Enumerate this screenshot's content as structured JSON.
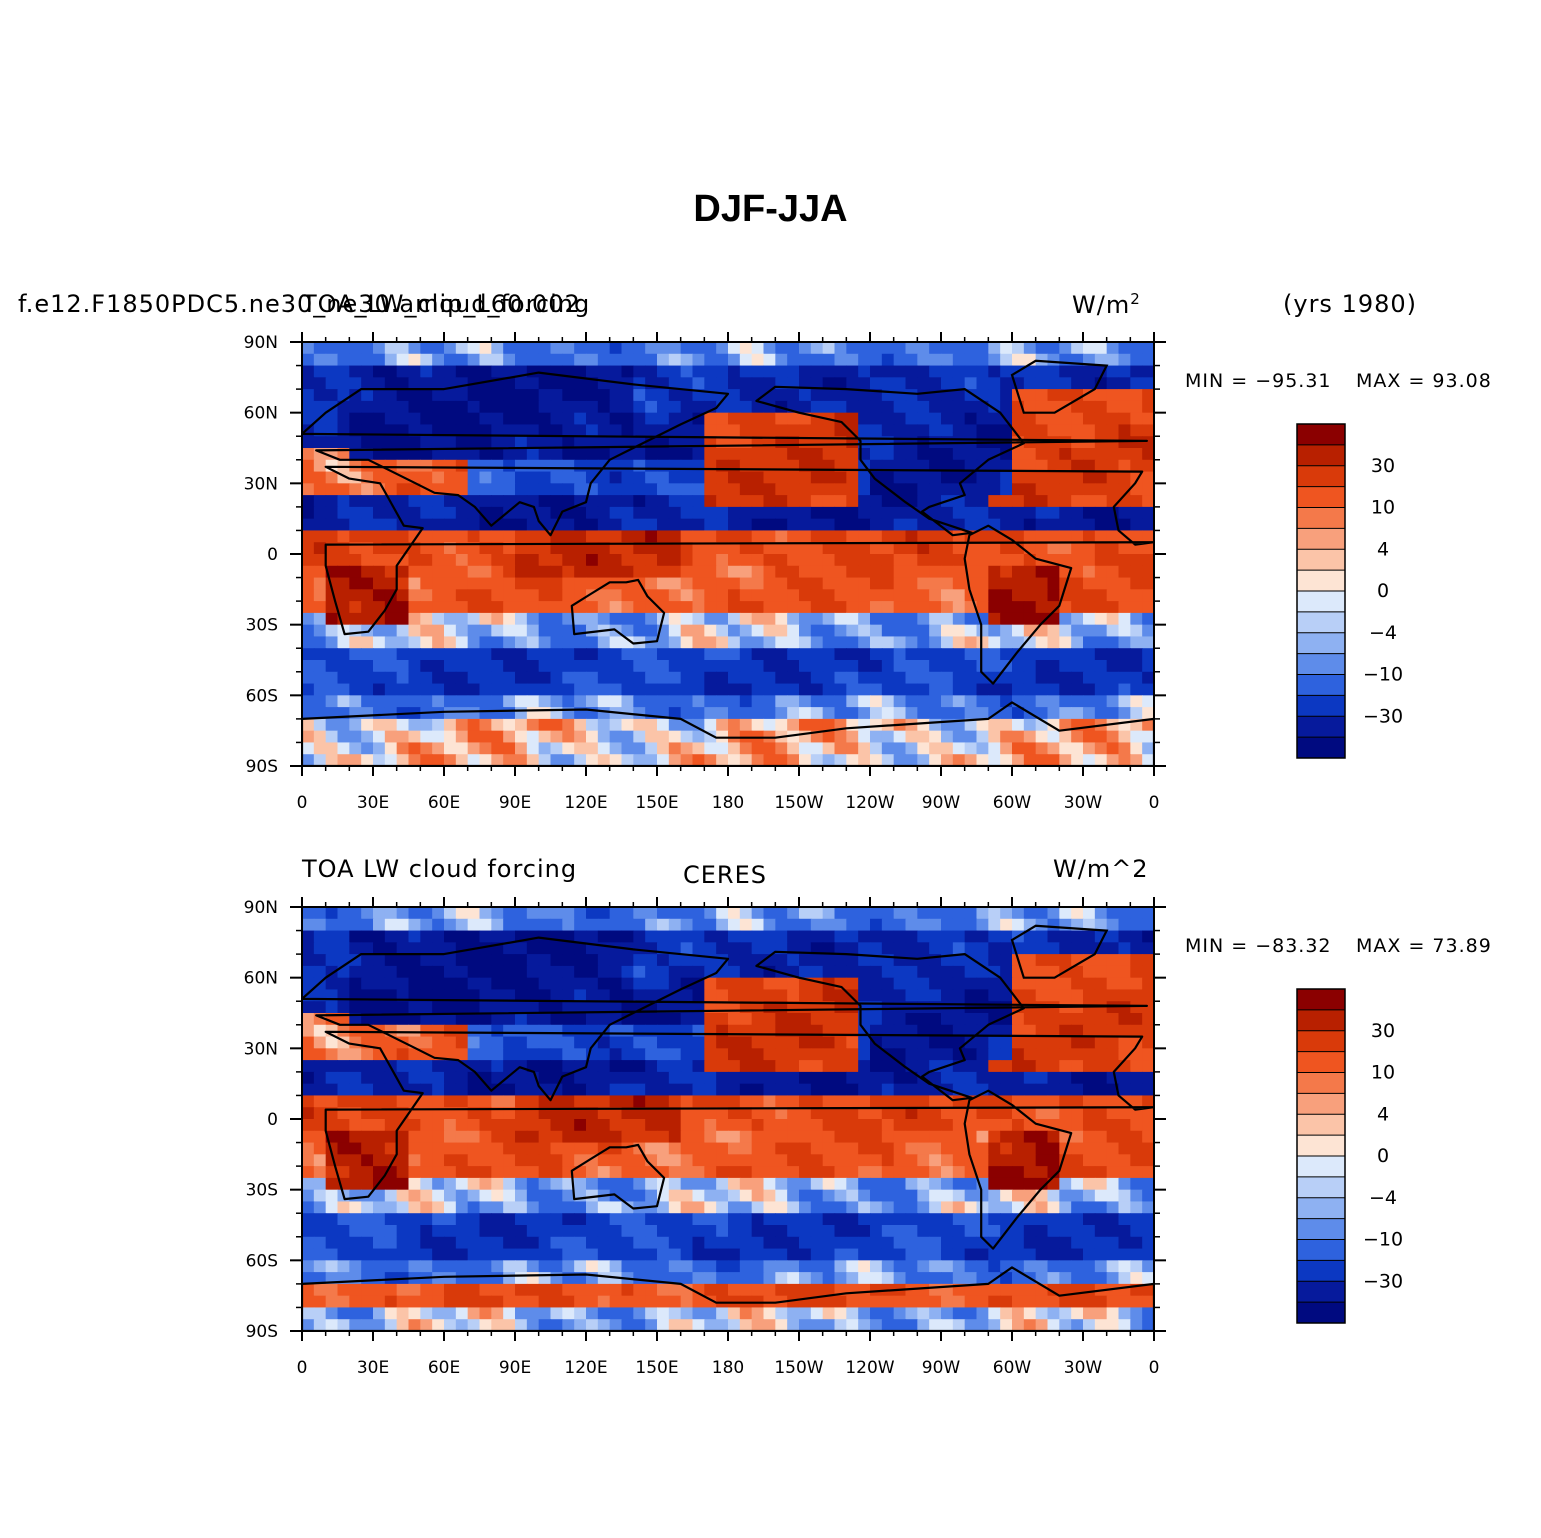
{
  "figure": {
    "title": "DJF-JJA"
  },
  "chart_data": [
    {
      "type": "heatmap",
      "case_name": "f.e12.F1850PDC5.ne30_ne30.amip_L60.002",
      "left_title": "TOA_LW_cloud_forcing",
      "center_title": "",
      "units": "W/m",
      "units_sup": "2",
      "years": "(yrs 1980)",
      "min_label": "MIN = −95.31",
      "max_label": "MAX =  93.08",
      "min": -95.31,
      "max": 93.08,
      "x_ticks": [
        "0",
        "30E",
        "60E",
        "90E",
        "120E",
        "150E",
        "180",
        "150W",
        "120W",
        "90W",
        "60W",
        "30W",
        "0"
      ],
      "y_ticks": [
        "90N",
        "60N",
        "30N",
        "0",
        "30S",
        "60S",
        "90S"
      ],
      "xlim": [
        0,
        360
      ],
      "ylim": [
        -90,
        90
      ],
      "colorbar": {
        "levels": [
          -40,
          -30,
          -20,
          -10,
          -6,
          -4,
          -2,
          0,
          2,
          4,
          6,
          10,
          20,
          30,
          40
        ],
        "labels": [
          "30",
          "10",
          "4",
          "0",
          "−4",
          "−10",
          "−30"
        ],
        "colors": [
          "#8b0000",
          "#b82000",
          "#d93a0a",
          "#ef5520",
          "#f4794a",
          "#f8a07c",
          "#fbc4a8",
          "#fde4d4",
          "#dce9fb",
          "#b8cff7",
          "#8eb1f2",
          "#5e8cea",
          "#2e62de",
          "#0c38c2",
          "#061a9c",
          "#000a80"
        ]
      }
    },
    {
      "type": "heatmap",
      "case_name": "",
      "left_title": "TOA LW cloud forcing",
      "center_title": "CERES",
      "units": "W/m^2",
      "units_sup": "",
      "years": "",
      "min_label": "MIN = −83.32",
      "max_label": "MAX =  73.89",
      "min": -83.32,
      "max": 73.89,
      "x_ticks": [
        "0",
        "30E",
        "60E",
        "90E",
        "120E",
        "150E",
        "180",
        "150W",
        "120W",
        "90W",
        "60W",
        "30W",
        "0"
      ],
      "y_ticks": [
        "90N",
        "60N",
        "30N",
        "0",
        "30S",
        "60S",
        "90S"
      ],
      "xlim": [
        0,
        360
      ],
      "ylim": [
        -90,
        90
      ],
      "colorbar": {
        "levels": [
          -40,
          -30,
          -20,
          -10,
          -6,
          -4,
          -2,
          0,
          2,
          4,
          6,
          10,
          20,
          30,
          40
        ],
        "labels": [
          "30",
          "10",
          "4",
          "0",
          "−4",
          "−10",
          "−30"
        ],
        "colors": [
          "#8b0000",
          "#b82000",
          "#d93a0a",
          "#ef5520",
          "#f4794a",
          "#f8a07c",
          "#fbc4a8",
          "#fde4d4",
          "#dce9fb",
          "#b8cff7",
          "#8eb1f2",
          "#5e8cea",
          "#2e62de",
          "#0c38c2",
          "#061a9c",
          "#000a80"
        ]
      }
    }
  ],
  "regions": {
    "zonal_bands": [
      {
        "lat_from": 90,
        "lat_to": 80,
        "val": -10
      },
      {
        "lat_from": 80,
        "lat_to": 60,
        "val": -30
      },
      {
        "lat_from": 60,
        "lat_to": 40,
        "val": -35
      },
      {
        "lat_from": 40,
        "lat_to": 25,
        "val": -20
      },
      {
        "lat_from": 25,
        "lat_to": 8,
        "val": -35
      },
      {
        "lat_from": 8,
        "lat_to": -5,
        "val": 20
      },
      {
        "lat_from": -5,
        "lat_to": -25,
        "val": 15
      },
      {
        "lat_from": -25,
        "lat_to": -40,
        "val": -5
      },
      {
        "lat_from": -40,
        "lat_to": -60,
        "val": -25
      },
      {
        "lat_from": -60,
        "lat_to": -68,
        "val": -10
      },
      {
        "lat_from": -68,
        "lat_to": -90,
        "val": 2
      }
    ],
    "patches": [
      {
        "lon0": 170,
        "lon1": 235,
        "lat0": 60,
        "lat1": 20,
        "val": 25
      },
      {
        "lon0": 290,
        "lon1": 360,
        "lat0": 70,
        "lat1": 20,
        "val": 22
      },
      {
        "lon0": 0,
        "lon1": 70,
        "lat0": 45,
        "lat1": 25,
        "val": 12
      },
      {
        "lon0": 10,
        "lon1": 45,
        "lat0": -5,
        "lat1": -30,
        "val": 40
      },
      {
        "lon0": 290,
        "lon1": 320,
        "lat0": -5,
        "lat1": -30,
        "val": 40
      },
      {
        "lon0": 90,
        "lon1": 160,
        "lat0": 10,
        "lat1": -10,
        "val": 30
      },
      {
        "lon0": 240,
        "lon1": 300,
        "lat0": 70,
        "lat1": 25,
        "val": -35
      },
      {
        "lon0": 20,
        "lon1": 140,
        "lat0": 80,
        "lat1": 40,
        "val": -40
      }
    ]
  }
}
